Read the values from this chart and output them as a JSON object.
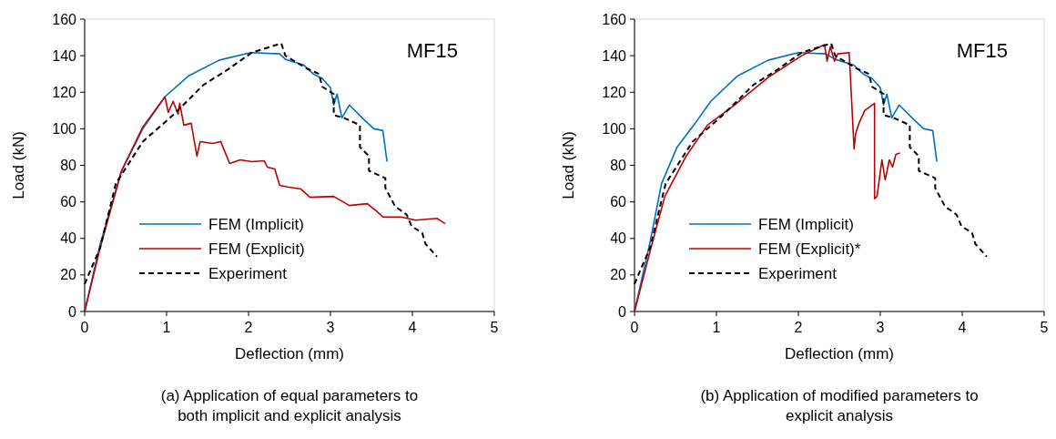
{
  "chart_data": [
    {
      "type": "line",
      "xlabel": "Deflection (mm)",
      "ylabel": "Load (kN)",
      "xlim": [
        0,
        5
      ],
      "ylim": [
        0,
        160
      ],
      "xticks": [
        0,
        1,
        2,
        3,
        4,
        5
      ],
      "yticks": [
        0,
        20,
        40,
        60,
        80,
        100,
        120,
        140,
        160
      ],
      "grid": false,
      "legend": "bottom left",
      "annotations": [
        "MF15",
        "(a) Application of equal parameters to both implicit and explicit analysis"
      ],
      "series": [
        {
          "name": "FEM (Implicit)",
          "color": "#0070c0",
          "line_style": "solid",
          "x": [
            0,
            0.19,
            0.45,
            0.71,
            0.98,
            1.27,
            1.64,
            2.03,
            2.38,
            2.45,
            2.67,
            2.79,
            2.9,
            3.0,
            3.04,
            3.08,
            3.14,
            3.23,
            3.41,
            3.53,
            3.64,
            3.69
          ],
          "values": [
            0,
            37,
            77,
            100,
            117.5,
            129,
            137.5,
            141.7,
            141,
            138,
            135,
            130,
            127.5,
            122.5,
            113,
            119,
            106,
            113,
            105,
            100,
            99,
            82
          ]
        },
        {
          "name": "FEM (Explicit)",
          "color": "#c00000",
          "line_style": "solid",
          "x": [
            0,
            0.19,
            0.45,
            0.71,
            0.98,
            1.02,
            1.08,
            1.14,
            1.16,
            1.21,
            1.3,
            1.37,
            1.41,
            1.56,
            1.66,
            1.77,
            1.9,
            2.04,
            2.19,
            2.23,
            2.32,
            2.38,
            2.49,
            2.64,
            2.75,
            3.04,
            3.23,
            3.45,
            3.56,
            3.64,
            3.86,
            4.04,
            4.3,
            4.4
          ],
          "values": [
            0,
            35,
            77,
            101,
            117.5,
            109,
            115,
            108,
            114,
            102,
            103,
            85,
            93,
            92,
            93,
            81,
            83,
            82,
            82.5,
            79,
            78,
            69,
            68,
            67,
            62.5,
            63,
            58,
            59,
            55,
            51.7,
            51.7,
            50,
            51,
            48
          ]
        },
        {
          "name": "Experiment",
          "color": "#000000",
          "line_style": "dashed",
          "x": [
            0,
            0.19,
            0.38,
            0.71,
            1.08,
            1.45,
            1.75,
            2.04,
            2.4,
            2.45,
            2.71,
            2.86,
            2.9,
            3.04,
            3.04,
            3.16,
            3.36,
            3.36,
            3.47,
            3.47,
            3.67,
            3.67,
            3.79,
            3.93,
            3.99,
            4.12,
            4.16,
            4.3
          ],
          "values": [
            15,
            35,
            70,
            93,
            107.5,
            124,
            132.5,
            141.7,
            146.7,
            140,
            133,
            130,
            123,
            119,
            107.5,
            106,
            102,
            90,
            85,
            77,
            73,
            67.5,
            57.5,
            53,
            46.7,
            43,
            37,
            30
          ]
        }
      ]
    },
    {
      "type": "line",
      "xlabel": "Deflection (mm)",
      "ylabel": "Load (kN)",
      "xlim": [
        0,
        5
      ],
      "ylim": [
        0,
        160
      ],
      "xticks": [
        0,
        1,
        2,
        3,
        4,
        5
      ],
      "yticks": [
        0,
        20,
        40,
        60,
        80,
        100,
        120,
        140,
        160
      ],
      "grid": false,
      "legend": "bottom left",
      "annotations": [
        "MF15",
        "(b) Application of modified parameters to explicit analysis"
      ],
      "series": [
        {
          "name": "FEM (Implicit)",
          "color": "#0070c0",
          "line_style": "solid",
          "x": [
            0,
            0.19,
            0.33,
            0.52,
            0.74,
            0.93,
            1.26,
            1.63,
            2.0,
            2.33,
            2.45,
            2.67,
            2.79,
            2.9,
            3.0,
            3.04,
            3.08,
            3.14,
            3.23,
            3.41,
            3.53,
            3.64,
            3.69
          ],
          "values": [
            0,
            38,
            70,
            90,
            103,
            115,
            129,
            137.5,
            141.7,
            141,
            138,
            135,
            130,
            127.5,
            122.5,
            113,
            119,
            106,
            113,
            105,
            100,
            99,
            82
          ]
        },
        {
          "name": "FEM (Explicit)*",
          "color": "#c00000",
          "line_style": "solid",
          "x": [
            0,
            0.19,
            0.37,
            0.63,
            0.89,
            1.22,
            1.63,
            2.04,
            2.32,
            2.35,
            2.39,
            2.44,
            2.48,
            2.62,
            2.68,
            2.7,
            2.74,
            2.81,
            2.93,
            2.93,
            2.96,
            3.02,
            3.06,
            3.11,
            3.15,
            3.19,
            3.24
          ],
          "values": [
            0,
            33,
            63,
            85,
            102,
            113,
            128,
            140,
            146,
            137,
            145,
            137,
            141,
            141.7,
            89,
            97.5,
            103,
            110,
            114,
            61.7,
            63,
            83,
            72,
            83,
            79,
            86,
            86.7
          ]
        },
        {
          "name": "Experiment",
          "color": "#000000",
          "line_style": "dashed",
          "x": [
            0,
            0.19,
            0.38,
            0.71,
            1.08,
            1.45,
            1.75,
            2.04,
            2.4,
            2.45,
            2.71,
            2.86,
            2.9,
            3.04,
            3.04,
            3.16,
            3.36,
            3.36,
            3.47,
            3.47,
            3.67,
            3.67,
            3.79,
            3.93,
            3.99,
            4.12,
            4.16,
            4.3
          ],
          "values": [
            15,
            35,
            70,
            93,
            107.5,
            124,
            132.5,
            141.7,
            146.7,
            140,
            133,
            130,
            123,
            119,
            107.5,
            106,
            102,
            90,
            85,
            77,
            73,
            67.5,
            57.5,
            53,
            46.7,
            43,
            37,
            30
          ]
        }
      ]
    }
  ]
}
